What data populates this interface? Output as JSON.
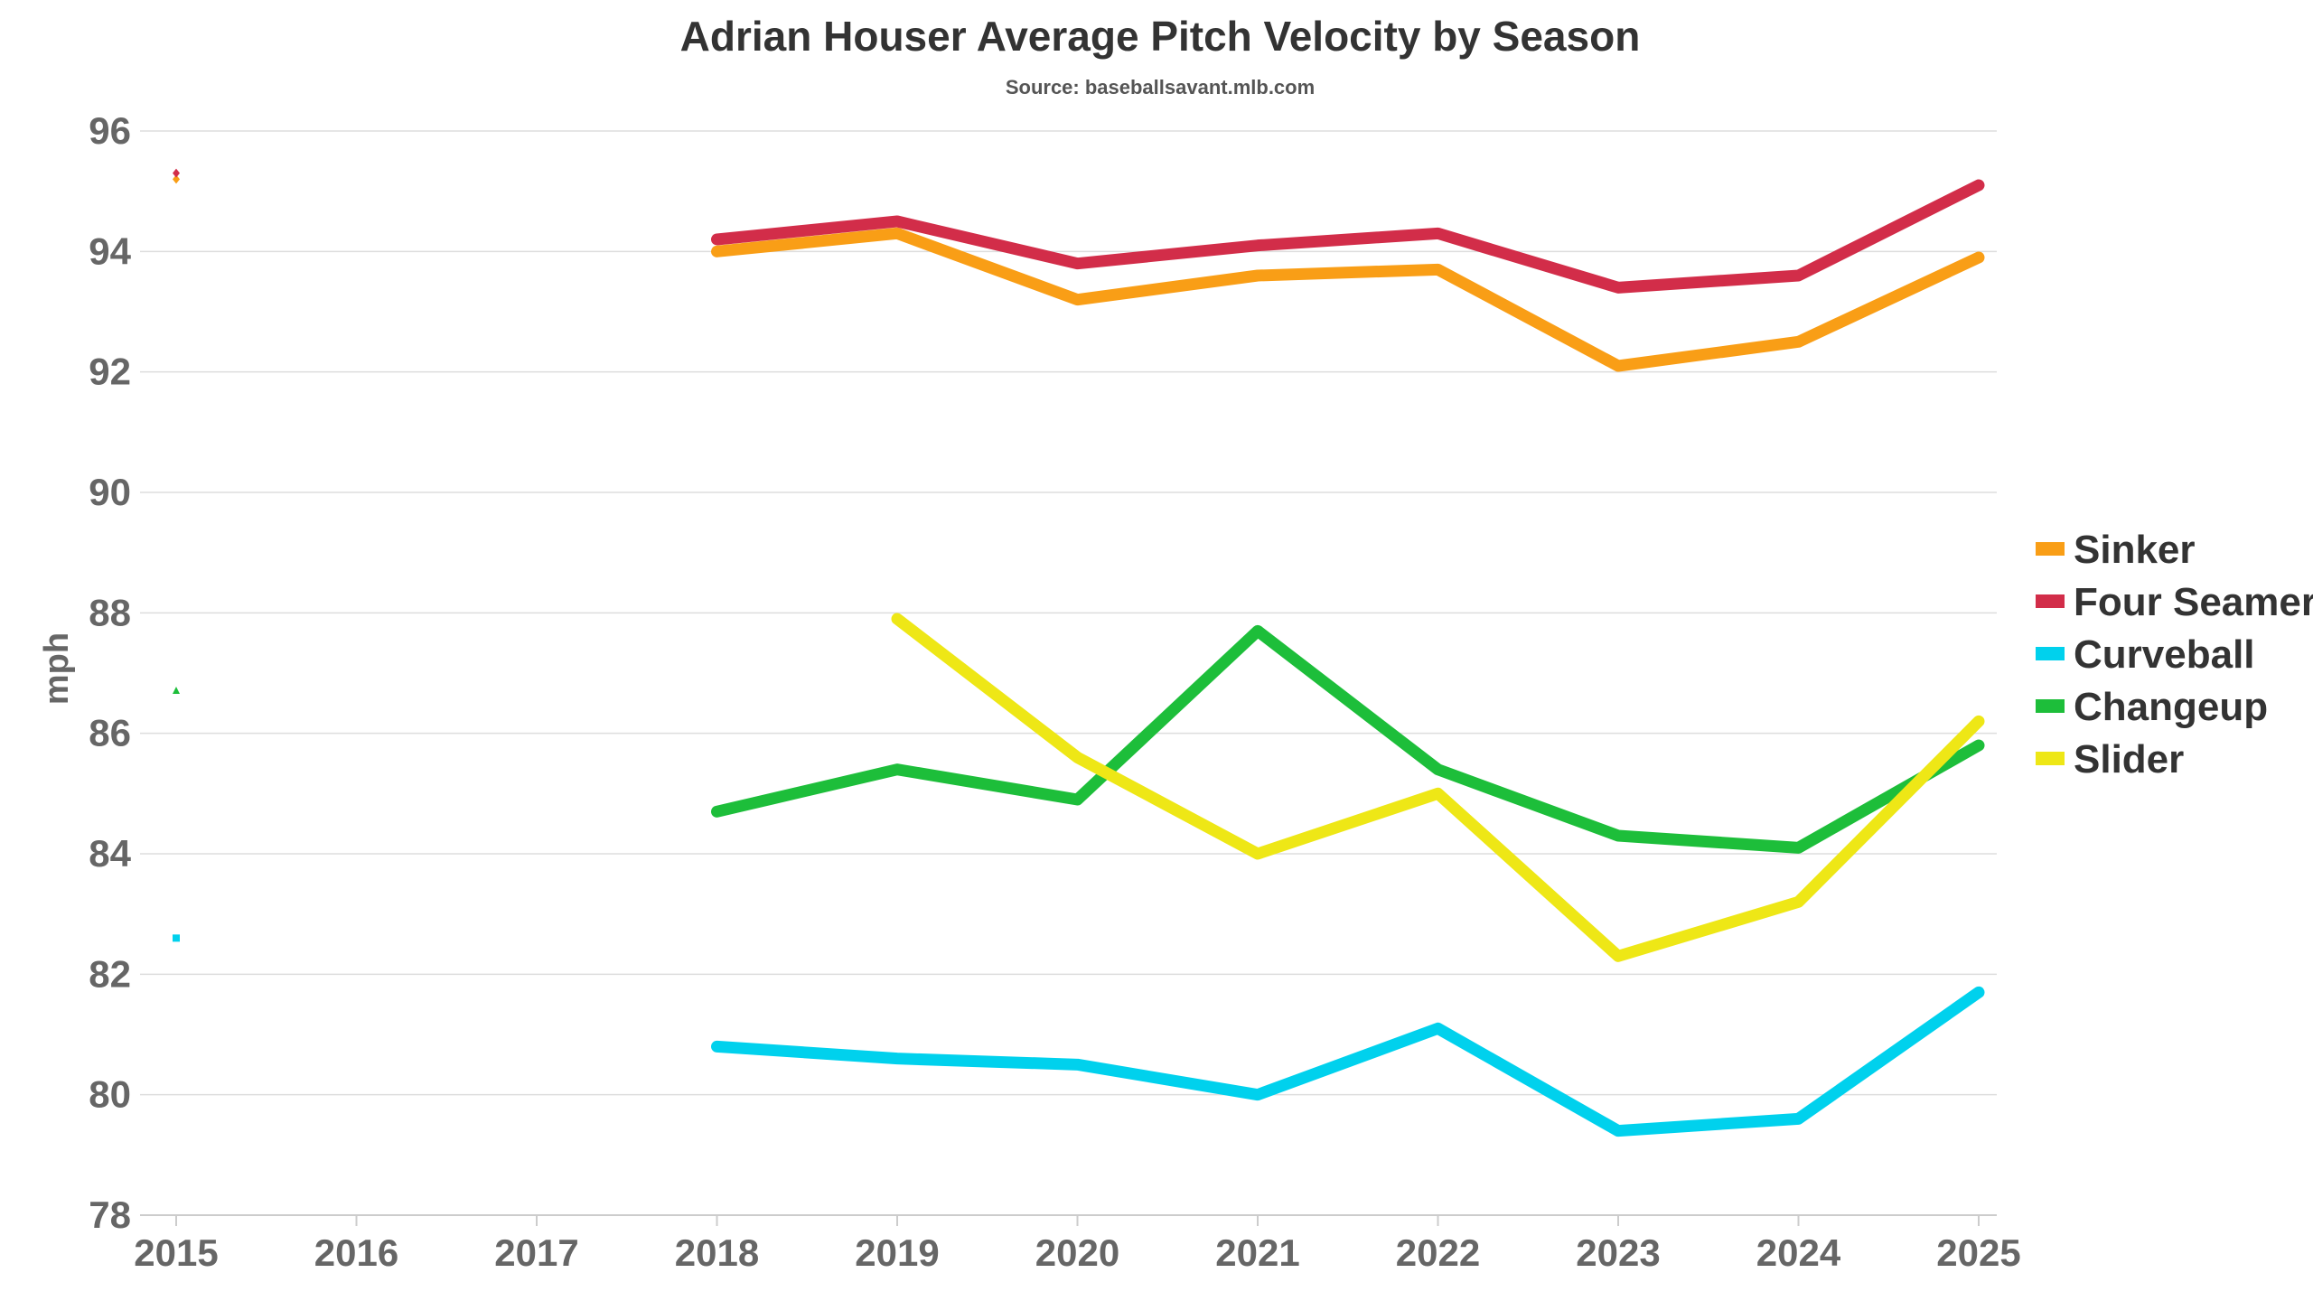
{
  "chart_data": {
    "type": "line",
    "title": "Adrian Houser Average Pitch Velocity by Season",
    "subtitle": "Source: baseballsavant.mlb.com",
    "xlabel": "",
    "ylabel": "mph",
    "x": [
      "2015",
      "2016",
      "2017",
      "2018",
      "2019",
      "2020",
      "2021",
      "2022",
      "2023",
      "2024",
      "2025"
    ],
    "xlim": [
      2015,
      2025
    ],
    "ylim": [
      78,
      96
    ],
    "yticks": [
      "78",
      "80",
      "82",
      "84",
      "86",
      "88",
      "90",
      "92",
      "94",
      "96"
    ],
    "grid": true,
    "legend_position": "right",
    "series": [
      {
        "name": "Sinker",
        "color": "#f99e16",
        "marker": "diamond",
        "values": [
          95.2,
          null,
          null,
          94.0,
          94.3,
          93.2,
          93.6,
          93.7,
          92.1,
          92.5,
          93.9
        ]
      },
      {
        "name": "Four Seamer",
        "color": "#d22d49",
        "marker": "diamond",
        "values": [
          95.3,
          null,
          null,
          94.2,
          94.5,
          93.8,
          94.1,
          94.3,
          93.4,
          93.6,
          95.1
        ]
      },
      {
        "name": "Curveball",
        "color": "#00d1ed",
        "marker": "square",
        "values": [
          82.6,
          null,
          null,
          80.8,
          80.6,
          80.5,
          80.0,
          81.1,
          79.4,
          79.6,
          81.7
        ]
      },
      {
        "name": "Changeup",
        "color": "#1dbe3a",
        "marker": "triangle",
        "values": [
          86.7,
          null,
          null,
          84.7,
          85.4,
          84.9,
          87.7,
          85.4,
          84.3,
          84.1,
          85.8
        ]
      },
      {
        "name": "Slider",
        "color": "#eee716",
        "marker": "none",
        "values": [
          null,
          null,
          null,
          null,
          87.9,
          85.6,
          84.0,
          85.0,
          82.3,
          83.2,
          86.2
        ]
      }
    ]
  }
}
